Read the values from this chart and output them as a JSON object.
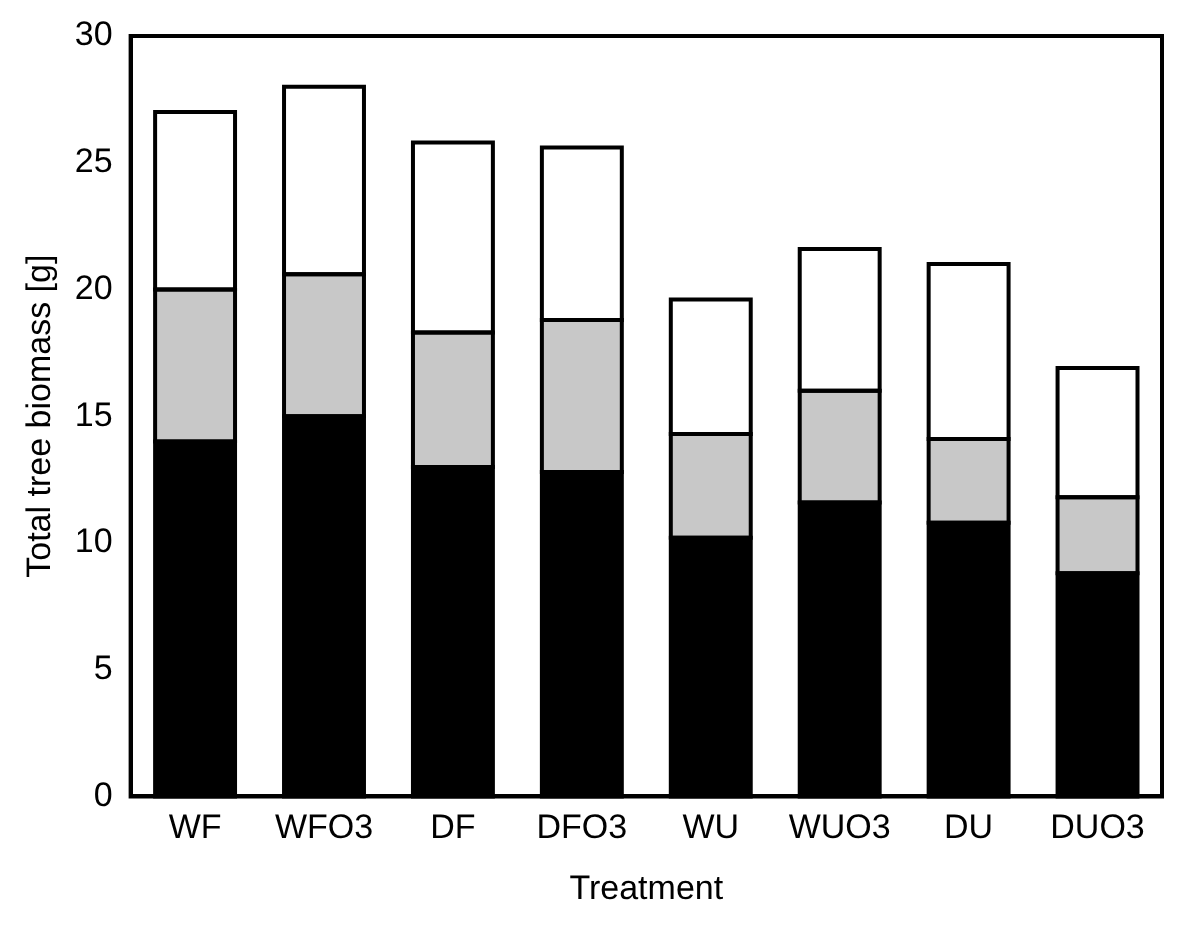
{
  "chart_data": {
    "type": "bar",
    "stacked": true,
    "xlabel": "Treatment",
    "ylabel": "Total tree biomass [g]",
    "categories": [
      "WF",
      "WFO3",
      "DF",
      "DFO3",
      "WU",
      "WUO3",
      "DU",
      "DUO3"
    ],
    "series": [
      {
        "color": "#000000",
        "values": [
          14,
          15,
          13,
          12.8,
          10.2,
          11.6,
          10.8,
          8.8
        ]
      },
      {
        "color": "#c8c8c8",
        "values": [
          6.0,
          5.6,
          5.3,
          6.0,
          4.1,
          4.4,
          3.3,
          3.0
        ]
      },
      {
        "color": "#ffffff",
        "values": [
          7.0,
          7.4,
          7.5,
          6.8,
          5.3,
          5.6,
          6.9,
          5.1
        ]
      }
    ],
    "ylim": [
      0,
      30
    ],
    "yticks": [
      0,
      5,
      10,
      15,
      20,
      25,
      30
    ],
    "grid": false,
    "legend": false
  }
}
